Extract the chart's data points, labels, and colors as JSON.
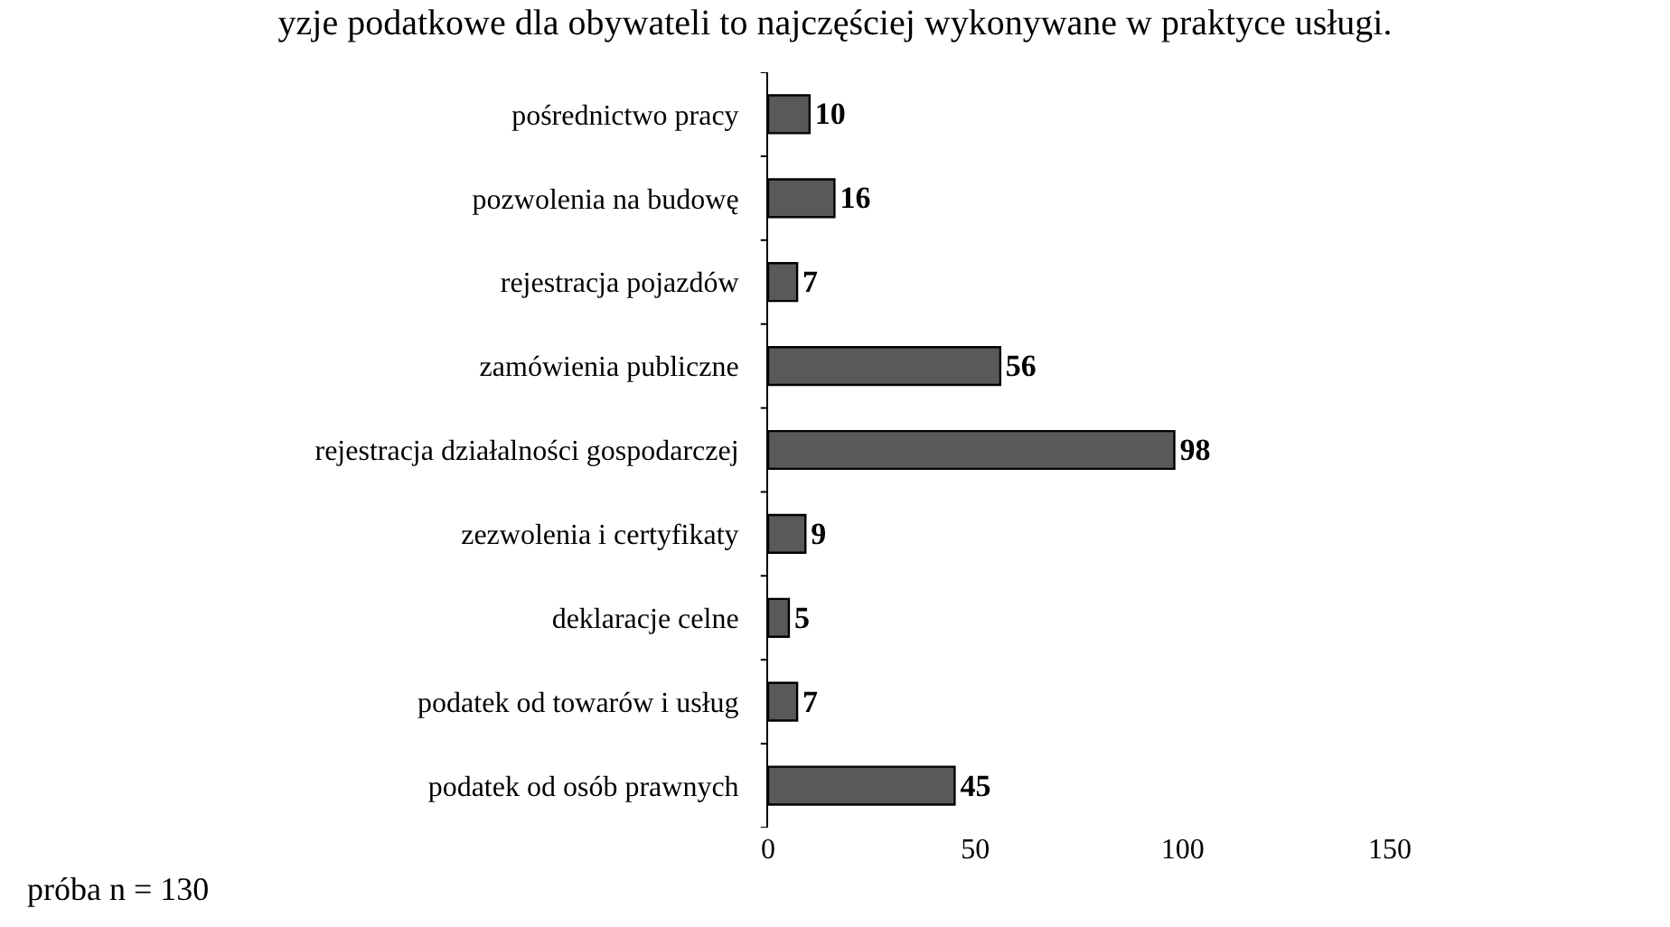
{
  "chart_data": {
    "type": "bar",
    "orientation": "horizontal",
    "title": "yzje podatkowe dla obywateli to najczęściej wykonywane w praktyce usługi.",
    "categories": [
      "pośrednictwo pracy",
      "pozwolenia na budowę",
      "rejestracja pojazdów",
      "zamówienia publiczne",
      "rejestracja działalności gospodarczej",
      "zezwolenia i certyfikaty",
      "deklaracje celne",
      "podatek od towarów i usług",
      "podatek od osób prawnych"
    ],
    "values": [
      10,
      16,
      7,
      56,
      98,
      9,
      5,
      7,
      45
    ],
    "color": "#595959",
    "xlim": [
      0,
      150
    ],
    "xticks": [
      0,
      50,
      100,
      150
    ],
    "data_labels": true,
    "legend": false,
    "annotations": [
      "próba n = 130"
    ]
  }
}
